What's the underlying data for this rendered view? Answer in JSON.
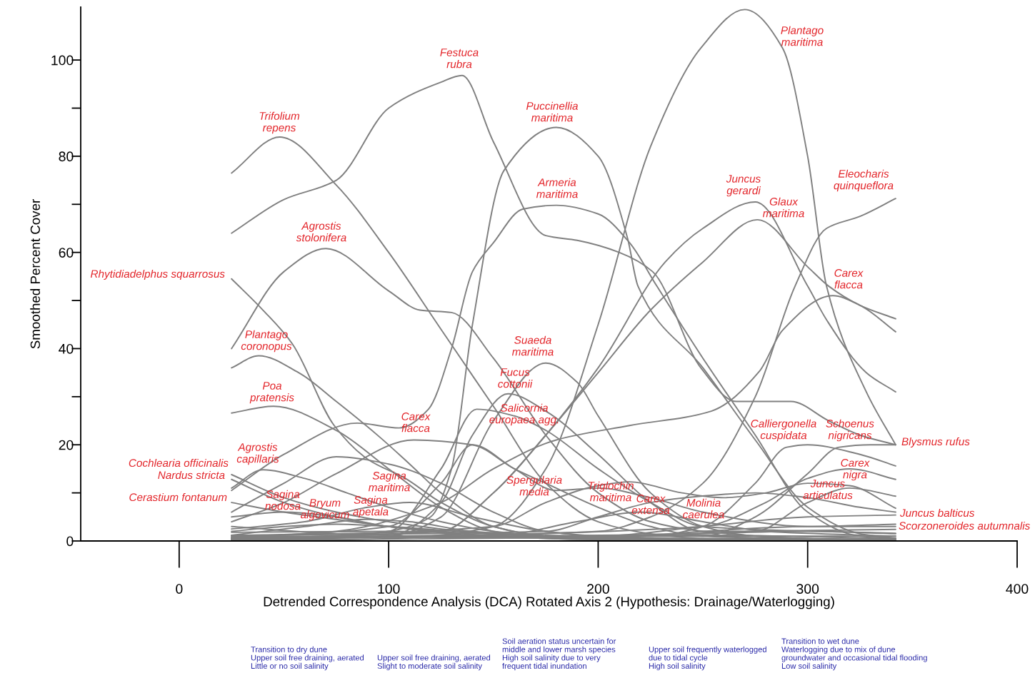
{
  "chart_data": {
    "type": "line",
    "xlabel": "Detrended Correspondence Analysis (DCA) Rotated Axis 2 (Hypothesis: Drainage/Waterlogging)",
    "ylabel": "Smoothed Percent Cover",
    "xlim": [
      -47,
      400
    ],
    "ylim": [
      0,
      111
    ],
    "xticks": [
      0,
      100,
      200,
      300,
      400
    ],
    "yticks": [
      0,
      {
        "value": 10,
        "label": null
      },
      20,
      {
        "value": 30,
        "label": null
      },
      40,
      {
        "value": 50,
        "label": null
      },
      60,
      {
        "value": 70,
        "label": null
      },
      80,
      {
        "value": 90,
        "label": null
      },
      100
    ],
    "marker": "none",
    "line_style": "solid",
    "series": [
      {
        "color": "#808080",
        "x": [
          25,
          48,
          75,
          100,
          125,
          150,
          175,
          200,
          225,
          250,
          300,
          342
        ],
        "values": [
          76.5,
          84,
          74,
          60,
          44,
          28,
          12,
          4,
          1.5,
          0.5,
          0.2,
          0.1
        ]
      },
      {
        "color": "#808080",
        "x": [
          25,
          50,
          75,
          100,
          125,
          135,
          150,
          175,
          190,
          210,
          226,
          249,
          266,
          292,
          310,
          325,
          342
        ],
        "values": [
          64,
          71,
          75,
          90,
          95.4,
          96.8,
          83,
          63.5,
          62.5,
          60,
          56,
          36,
          29,
          29,
          25,
          22,
          20
        ]
      },
      {
        "color": "#808080",
        "x": [
          25,
          75,
          100,
          120,
          130,
          140,
          155,
          180,
          200,
          214,
          219,
          250,
          275,
          300,
          325,
          342
        ],
        "values": [
          0.3,
          1,
          2,
          5,
          15,
          45,
          77,
          86,
          80,
          63,
          53,
          36,
          21,
          7,
          1.5,
          0.6
        ]
      },
      {
        "color": "#808080",
        "x": [
          25,
          50,
          85,
          105,
          119,
          130,
          140,
          150,
          164,
          180,
          200,
          215,
          228,
          250,
          275,
          300,
          325,
          342
        ],
        "values": [
          10.5,
          18,
          24.5,
          23.5,
          27.4,
          40,
          56,
          62,
          69,
          69.8,
          68,
          62,
          53,
          38,
          22,
          6,
          1,
          0.6
        ]
      },
      {
        "color": "#808080",
        "x": [
          25,
          100,
          150,
          175,
          200,
          225,
          249,
          270,
          288,
          300,
          309,
          328,
          342
        ],
        "values": [
          0,
          0.5,
          3,
          15,
          45,
          82,
          102.5,
          110.5,
          102.5,
          80,
          53,
          31,
          20
        ]
      },
      {
        "color": "#808080",
        "x": [
          25,
          125,
          150,
          175,
          200,
          232,
          250,
          275,
          300,
          309,
          328,
          342
        ],
        "values": [
          0.5,
          2,
          10,
          22,
          36,
          58,
          65,
          70.5,
          53,
          46,
          35,
          31
        ]
      },
      {
        "color": "#808080",
        "x": [
          25,
          125,
          150,
          175,
          200,
          225,
          250,
          276,
          300,
          310,
          325,
          342
        ],
        "values": [
          0.6,
          2,
          10,
          22,
          35,
          48,
          58,
          66.8,
          57,
          53,
          49,
          46.2
        ]
      },
      {
        "color": "#808080",
        "x": [
          25,
          200,
          225,
          250,
          275,
          294,
          309,
          325,
          342
        ],
        "values": [
          0.3,
          2,
          5,
          12,
          30,
          53,
          65,
          67.5,
          71.2
        ]
      },
      {
        "color": "#808080",
        "x": [
          25,
          75,
          125,
          150,
          180,
          215,
          254,
          277,
          288,
          312,
          325,
          342
        ],
        "values": [
          0.7,
          2,
          8,
          15,
          21,
          24,
          27,
          35.3,
          43.8,
          51,
          49,
          43.5
        ]
      },
      {
        "color": "#808080",
        "x": [
          25,
          50,
          70,
          100,
          115,
          130,
          150,
          175,
          200,
          225,
          250,
          300,
          342
        ],
        "values": [
          40,
          56,
          60.8,
          52,
          48,
          47.5,
          38,
          22,
          10,
          4,
          2,
          0.5,
          0.2
        ]
      },
      {
        "color": "#808080",
        "x": [
          25,
          40,
          54,
          74,
          90,
          108,
          125,
          150,
          175,
          200,
          250,
          342
        ],
        "values": [
          54.5,
          48,
          41,
          24,
          17,
          13,
          8,
          3,
          1,
          0.5,
          0.2,
          0.1
        ]
      },
      {
        "color": "#808080",
        "x": [
          25,
          38,
          57,
          75,
          96,
          110,
          125,
          150,
          175,
          200,
          342
        ],
        "values": [
          36,
          38.5,
          35,
          29,
          21.5,
          16,
          10,
          3,
          1,
          0.5,
          0.2
        ]
      },
      {
        "color": "#808080",
        "x": [
          25,
          45,
          75,
          100,
          125,
          150,
          175,
          200,
          342
        ],
        "values": [
          26.6,
          28,
          23,
          15,
          7,
          2,
          0.5,
          0.3,
          0.1
        ]
      },
      {
        "color": "#808080",
        "x": [
          25,
          40,
          60,
          80,
          100,
          125,
          150,
          175,
          200,
          342
        ],
        "values": [
          11,
          14.8,
          13,
          10,
          7,
          4,
          2,
          1,
          0.5,
          0.2
        ]
      },
      {
        "color": "#808080",
        "x": [
          25,
          50,
          75,
          100,
          125,
          150,
          200,
          342
        ],
        "values": [
          13.8,
          9,
          6,
          4,
          2.5,
          1.5,
          0.5,
          0.3
        ]
      },
      {
        "color": "#808080",
        "x": [
          25,
          50,
          75,
          100,
          125,
          150,
          200,
          342
        ],
        "values": [
          12.8,
          8,
          5,
          3,
          2,
          1,
          0.4,
          0.1
        ]
      },
      {
        "color": "#808080",
        "x": [
          25,
          50,
          75,
          100,
          125,
          150,
          200,
          342
        ],
        "values": [
          8,
          6,
          4.5,
          3,
          2,
          1,
          0.3,
          0.1
        ]
      },
      {
        "color": "#808080",
        "x": [
          25,
          50,
          75,
          100,
          125,
          150,
          175,
          200,
          225,
          342
        ],
        "values": [
          6,
          12,
          17.5,
          16,
          12,
          6,
          2,
          1,
          0.5,
          0.2
        ]
      },
      {
        "color": "#808080",
        "x": [
          25,
          50,
          75,
          112,
          140,
          160,
          175,
          200,
          225,
          250,
          342
        ],
        "values": [
          4,
          8,
          14,
          21,
          20,
          15,
          12,
          7,
          3,
          1,
          0.2
        ]
      },
      {
        "color": "#808080",
        "x": [
          25,
          50,
          75,
          100,
          150,
          342
        ],
        "values": [
          5,
          6,
          5,
          3,
          1,
          0.3
        ]
      },
      {
        "color": "#808080",
        "x": [
          25,
          50,
          75,
          100,
          150,
          200,
          342
        ],
        "values": [
          2,
          3,
          3.5,
          3,
          1.5,
          0.5,
          0.1
        ]
      },
      {
        "color": "#808080",
        "x": [
          25,
          60,
          90,
          110,
          140,
          200,
          342
        ],
        "values": [
          1.2,
          3,
          4.5,
          4,
          2,
          0.5,
          0.2
        ]
      },
      {
        "color": "#808080",
        "x": [
          25,
          60,
          90,
          110,
          140,
          175,
          200,
          342
        ],
        "values": [
          2.5,
          4,
          7,
          8,
          5,
          2,
          1,
          1.0
        ]
      },
      {
        "color": "#808080",
        "x": [
          25,
          100,
          125,
          150,
          175,
          190,
          200,
          225,
          250,
          275,
          342
        ],
        "values": [
          0.2,
          1,
          5,
          25,
          37,
          33,
          26,
          10,
          3,
          1,
          0
        ]
      },
      {
        "color": "#808080",
        "x": [
          25,
          100,
          125,
          140,
          157,
          175,
          200,
          225,
          250,
          342
        ],
        "values": [
          0.4,
          1,
          8,
          22,
          30.6,
          27,
          18,
          8,
          2,
          2.4
        ]
      },
      {
        "color": "#808080",
        "x": [
          25,
          100,
          125,
          142,
          160,
          175,
          200,
          225,
          250,
          342
        ],
        "values": [
          0.3,
          2,
          15,
          27.4,
          26,
          23,
          15,
          8,
          3,
          1.6
        ]
      },
      {
        "color": "#808080",
        "x": [
          25,
          100,
          125,
          140,
          160,
          180,
          200,
          225,
          250,
          300,
          342
        ],
        "values": [
          0.8,
          3,
          12,
          20,
          15,
          10.5,
          11,
          9,
          6,
          3,
          3.5
        ]
      },
      {
        "color": "#808080",
        "x": [
          25,
          225,
          250,
          275,
          290,
          300,
          325,
          342
        ],
        "values": [
          0.2,
          1,
          3,
          12,
          19.5,
          20,
          18,
          15.6
        ]
      },
      {
        "color": "#808080",
        "x": [
          25,
          250,
          275,
          300,
          315,
          330,
          342
        ],
        "values": [
          0.9,
          1,
          5,
          14,
          19.5,
          20,
          20
        ]
      },
      {
        "color": "#808080",
        "x": [
          25,
          250,
          280,
          300,
          320,
          342
        ],
        "values": [
          0.4,
          3,
          8,
          13,
          15,
          12.8
        ]
      },
      {
        "color": "#808080",
        "x": [
          25,
          275,
          300,
          320,
          342
        ],
        "values": [
          0.5,
          2,
          8,
          11,
          9.3
        ]
      },
      {
        "color": "#808080",
        "x": [
          25,
          150,
          175,
          200,
          215,
          240,
          260,
          280,
          300,
          320,
          342
        ],
        "values": [
          0.9,
          3,
          8,
          11.5,
          12.3,
          10,
          9,
          10,
          12,
          11.5,
          6.8
        ]
      },
      {
        "color": "#808080",
        "x": [
          25,
          175,
          200,
          225,
          249,
          275,
          300,
          325,
          342
        ],
        "values": [
          1.2,
          2,
          5,
          8,
          9.3,
          10,
          9,
          7,
          6
        ]
      },
      {
        "color": "#808080",
        "x": [
          25,
          200,
          250,
          300,
          342
        ],
        "values": [
          0.7,
          1,
          3,
          5,
          5.4
        ]
      },
      {
        "color": "#808080",
        "x": [
          25,
          200,
          250,
          300,
          342
        ],
        "values": [
          1.1,
          0.5,
          2,
          3,
          3
        ]
      },
      {
        "color": "#808080",
        "x": [
          25,
          150,
          190,
          220,
          250,
          280,
          342
        ],
        "values": [
          0.6,
          1,
          4,
          6,
          4,
          2,
          1
        ]
      },
      {
        "color": "#808080",
        "x": [
          25,
          100,
          200,
          300,
          342
        ],
        "values": [
          1.8,
          2,
          1,
          2,
          1.5
        ]
      },
      {
        "color": "#808080",
        "x": [
          25,
          75,
          150,
          250,
          342
        ],
        "values": [
          3,
          1.5,
          0.8,
          1.2,
          0.5
        ]
      }
    ],
    "annotations": [
      "Trifolium\nrepens",
      "Festuca\nrubra",
      "Puccinellia\nmaritima",
      "Armeria\nmaritima",
      "Plantago\nmaritima",
      "Juncus\ngerardi",
      "Glaux\nmaritima",
      "Eleocharis\nquinqueflora",
      "Carex\nflacca",
      "Agrostis\nstolonifera",
      "Rhytidiadelphus squarrosus",
      "Plantago\ncoronopus",
      "Poa\npratensis",
      "Agrostis\ncapillaris",
      "Cochlearia officinalis",
      "Nardus stricta",
      "Cerastium fontanum",
      "Sagina\nnodosa",
      "Bryum\nalgovicum",
      "Sagina\napetala",
      "Sagina\nmaritima",
      "Carex\nflacca",
      "Suaeda\nmaritima",
      "Fucus\ncottonii",
      "Salicornia\neuropaea agg.",
      "Spergularia\nmedia",
      "Triglochin\nmaritima",
      "Carex\nextensa",
      "Molinia\ncaerulea",
      "Calliergonella\ncuspidata",
      "Schoenus\nnigricans",
      "Carex\nnigra",
      "Juncus\narticulatus",
      "Blysmus rufus",
      "Juncus balticus",
      "Scorzoneroides autumnalis",
      "Transition to dry dune\nUpper soil free draining, aerated\nLittle or no soil salinity",
      "Upper soil free draining, aerated\nSlight to moderate soil salinity",
      "Soil aeration status uncertain for\nmiddle and lower marsh species\nHigh soil salinity due to very\nfrequent tidal inundation",
      "Upper soil frequently waterlogged\ndue to tidal cycle\nHigh soil salinity",
      "Transition to wet dune\nWaterlogging due to mix of dune\ngroundwater and occasional tidal flooding\nLow soil salinity"
    ]
  }
}
